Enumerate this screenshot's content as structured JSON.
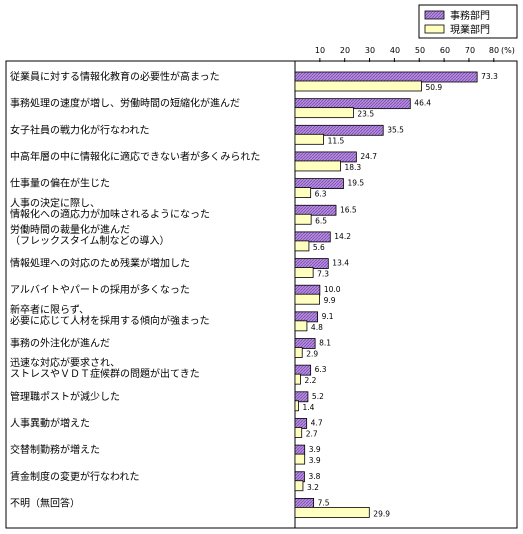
{
  "chart_data": {
    "type": "bar",
    "orientation": "horizontal",
    "xlim": [
      0,
      80
    ],
    "xticks": [
      "10",
      "20",
      "30",
      "40",
      "50",
      "60",
      "70",
      "80"
    ],
    "unit_label": "(%)",
    "legend_position": "top-right",
    "categories": [
      [
        "従業員に対する情報化教育の必要性が高まった"
      ],
      [
        "事務処理の速度が増し、労働時間の短縮化が進んだ"
      ],
      [
        "女子社員の戦力化が行なわれた"
      ],
      [
        "中高年層の中に情報化に適応できない者が多くみられた"
      ],
      [
        "仕事量の偏在が生じた"
      ],
      [
        "人事の決定に際し、",
        "情報化への適応力が加味されるようになった"
      ],
      [
        "労働時間の裁量化が進んだ",
        "（フレックスタイム制などの導入）"
      ],
      [
        "情報処理への対応のため残業が増加した"
      ],
      [
        "アルバイトやパートの採用が多くなった"
      ],
      [
        "新卒者に限らず、",
        "必要に応じて人材を採用する傾向が強まった"
      ],
      [
        "事務の外注化が進んだ"
      ],
      [
        "迅速な対応が要求され、",
        "ストレスやＶＤＴ症候群の問題が出てきた"
      ],
      [
        "管理職ポストが減少した"
      ],
      [
        "人事異動が増えた"
      ],
      [
        "交替制勤務が増えた"
      ],
      [
        "賃金制度の変更が行なわれた"
      ],
      [
        "不明（無回答）"
      ]
    ],
    "series": [
      {
        "name": "事務部門",
        "color": "#a070d0",
        "values": [
          73.3,
          46.4,
          35.5,
          24.7,
          19.5,
          16.5,
          14.2,
          13.4,
          10.0,
          9.1,
          8.1,
          6.3,
          5.2,
          4.7,
          3.9,
          3.8,
          7.5
        ],
        "labels": [
          "73.3",
          "46.4",
          "35.5",
          "24.7",
          "19.5",
          "16.5",
          "14.2",
          "13.4",
          "10.0",
          "9.1",
          "8.1",
          "6.3",
          "5.2",
          "4.7",
          "3.9",
          "3.8",
          "7.5"
        ]
      },
      {
        "name": "現業部門",
        "color": "#ffffc0",
        "values": [
          50.9,
          23.5,
          11.5,
          18.3,
          6.3,
          6.5,
          5.6,
          7.3,
          9.9,
          4.8,
          2.9,
          2.2,
          1.4,
          2.7,
          3.9,
          3.2,
          29.9
        ],
        "labels": [
          "50.9",
          "23.5",
          "11.5",
          "18.3",
          "6.3",
          "6.5",
          "5.6",
          "7.3",
          "9.9",
          "4.8",
          "2.9",
          "2.2",
          "1.4",
          "2.7",
          "3.9",
          "3.2",
          "29.9"
        ]
      }
    ]
  }
}
